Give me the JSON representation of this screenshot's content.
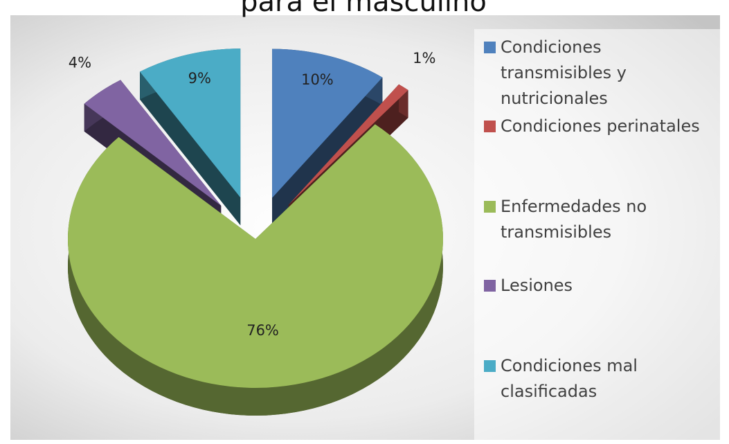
{
  "chart_data": {
    "type": "pie",
    "title": "para el masculino",
    "categories": [
      "Condiciones transmisibles y nutricionales",
      "Condiciones perinatales",
      "Enfermedades no transmisibles",
      "Lesiones",
      "Condiciones mal clasificadas"
    ],
    "values": [
      10,
      1,
      76,
      4,
      9
    ],
    "value_labels": [
      "10%",
      "1%",
      "76%",
      "4%",
      "9%"
    ],
    "colors": [
      "#4f81bd",
      "#c0504d",
      "#9bbb59",
      "#8064a2",
      "#4bacc6"
    ],
    "legend": "right"
  }
}
